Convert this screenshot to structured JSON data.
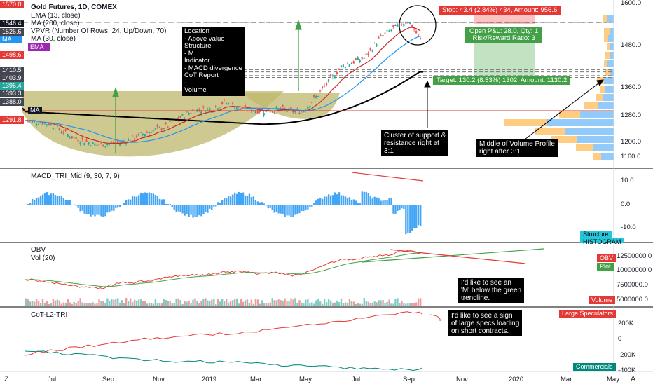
{
  "header": {
    "title": "Gold Futures, 1D, COMEX",
    "indicators": [
      "EMA (13, close)",
      "MA (200, close)",
      "VPVR (Number Of Rows, 24, Up/Down, 70)",
      "MA (30, close)"
    ]
  },
  "main_axis": {
    "ticks": [
      "1600.0",
      "1480.0",
      "1360.0",
      "1280.0",
      "1200.0",
      "1160.0"
    ],
    "badges": [
      {
        "text": "1570.0",
        "color": "#e53935"
      },
      {
        "text": "1546.4",
        "color": "#131722"
      },
      {
        "text": "1526.6",
        "color": "#434651"
      },
      {
        "text": "MA",
        "color": "#2196f3"
      },
      {
        "text": "EMA",
        "color": "#9c27b0"
      },
      {
        "text": "1498.6",
        "color": "#e53935"
      },
      {
        "text": "1410.5",
        "color": "#434651"
      },
      {
        "text": "1403.9",
        "color": "#434651"
      },
      {
        "text": "1396.4",
        "color": "#26a69a"
      },
      {
        "text": "1393.3",
        "color": "#434651"
      },
      {
        "text": "1388.0",
        "color": "#434651"
      },
      {
        "text": "1291.8",
        "color": "#e53935"
      }
    ],
    "ma_left_tag": "MA"
  },
  "annotations": {
    "location_box": [
      "Location",
      "- Above value",
      "Structure",
      "- M",
      "Indicator",
      "- MACD divergence",
      "CoT Report",
      "-",
      "Volume"
    ],
    "stop_label": "Stop: 43.4 (2.84%) 434, Amount: 956.6",
    "open_pl_label": [
      "Open P&L: 28.0, Qty: 1",
      "Risk/Reward Ratio: 3"
    ],
    "target_label": "Target: 130.2 (8.53%) 1302, Amount: 1130.2",
    "cluster_note": [
      "Cluster of support &",
      "resistance right at",
      "3:1"
    ],
    "middle_note": [
      "Middle of Volume Profile",
      "right after 3:1"
    ],
    "m_note": [
      "I'd like to see an",
      "'M' below the green",
      "trendline."
    ],
    "cot_note": [
      "I'd like to see a sign",
      "of large specs loading",
      "on short contracts."
    ]
  },
  "macd": {
    "title": "MACD_TRI_Mid (9, 30, 7, 9)",
    "ticks": [
      "10.0",
      "0.0",
      "-10.0"
    ],
    "badges": [
      {
        "text": "Structure",
        "color": "#26c6da"
      },
      {
        "text": "HISTOGRAM",
        "color": "#26c6da"
      }
    ]
  },
  "obv": {
    "title": "OBV",
    "subtitle": "Vol (20)",
    "ticks": [
      "12500000.0",
      "10000000.0",
      "7500000.0",
      "5000000.0"
    ],
    "badges": [
      {
        "text": "OBV",
        "color": "#e53935"
      },
      {
        "text": "Plot",
        "color": "#43a047"
      },
      {
        "text": "Volume",
        "color": "#e53935"
      }
    ]
  },
  "cot": {
    "title": "CoT-L2-TRI",
    "ticks": [
      "200K",
      "0",
      "-200K",
      "-400K"
    ],
    "badges": [
      {
        "text": "Large Speculators",
        "color": "#e53935"
      },
      {
        "text": "Commercials",
        "color": "#00897b"
      }
    ]
  },
  "time_axis": {
    "labels": [
      "Jul",
      "Sep",
      "Nov",
      "2019",
      "Mar",
      "May",
      "Jul",
      "Sep",
      "Nov",
      "2020",
      "Mar",
      "May"
    ],
    "left_icon": "Z",
    "right_icon": "A"
  },
  "colors": {
    "up": "#26a69a",
    "down": "#ef5350",
    "ema": "#e53935",
    "ma30": "#2196f3",
    "ma200": "#000000",
    "macd": "#42a5f5",
    "green_line": "#43a047",
    "red_line": "#e53935"
  }
}
